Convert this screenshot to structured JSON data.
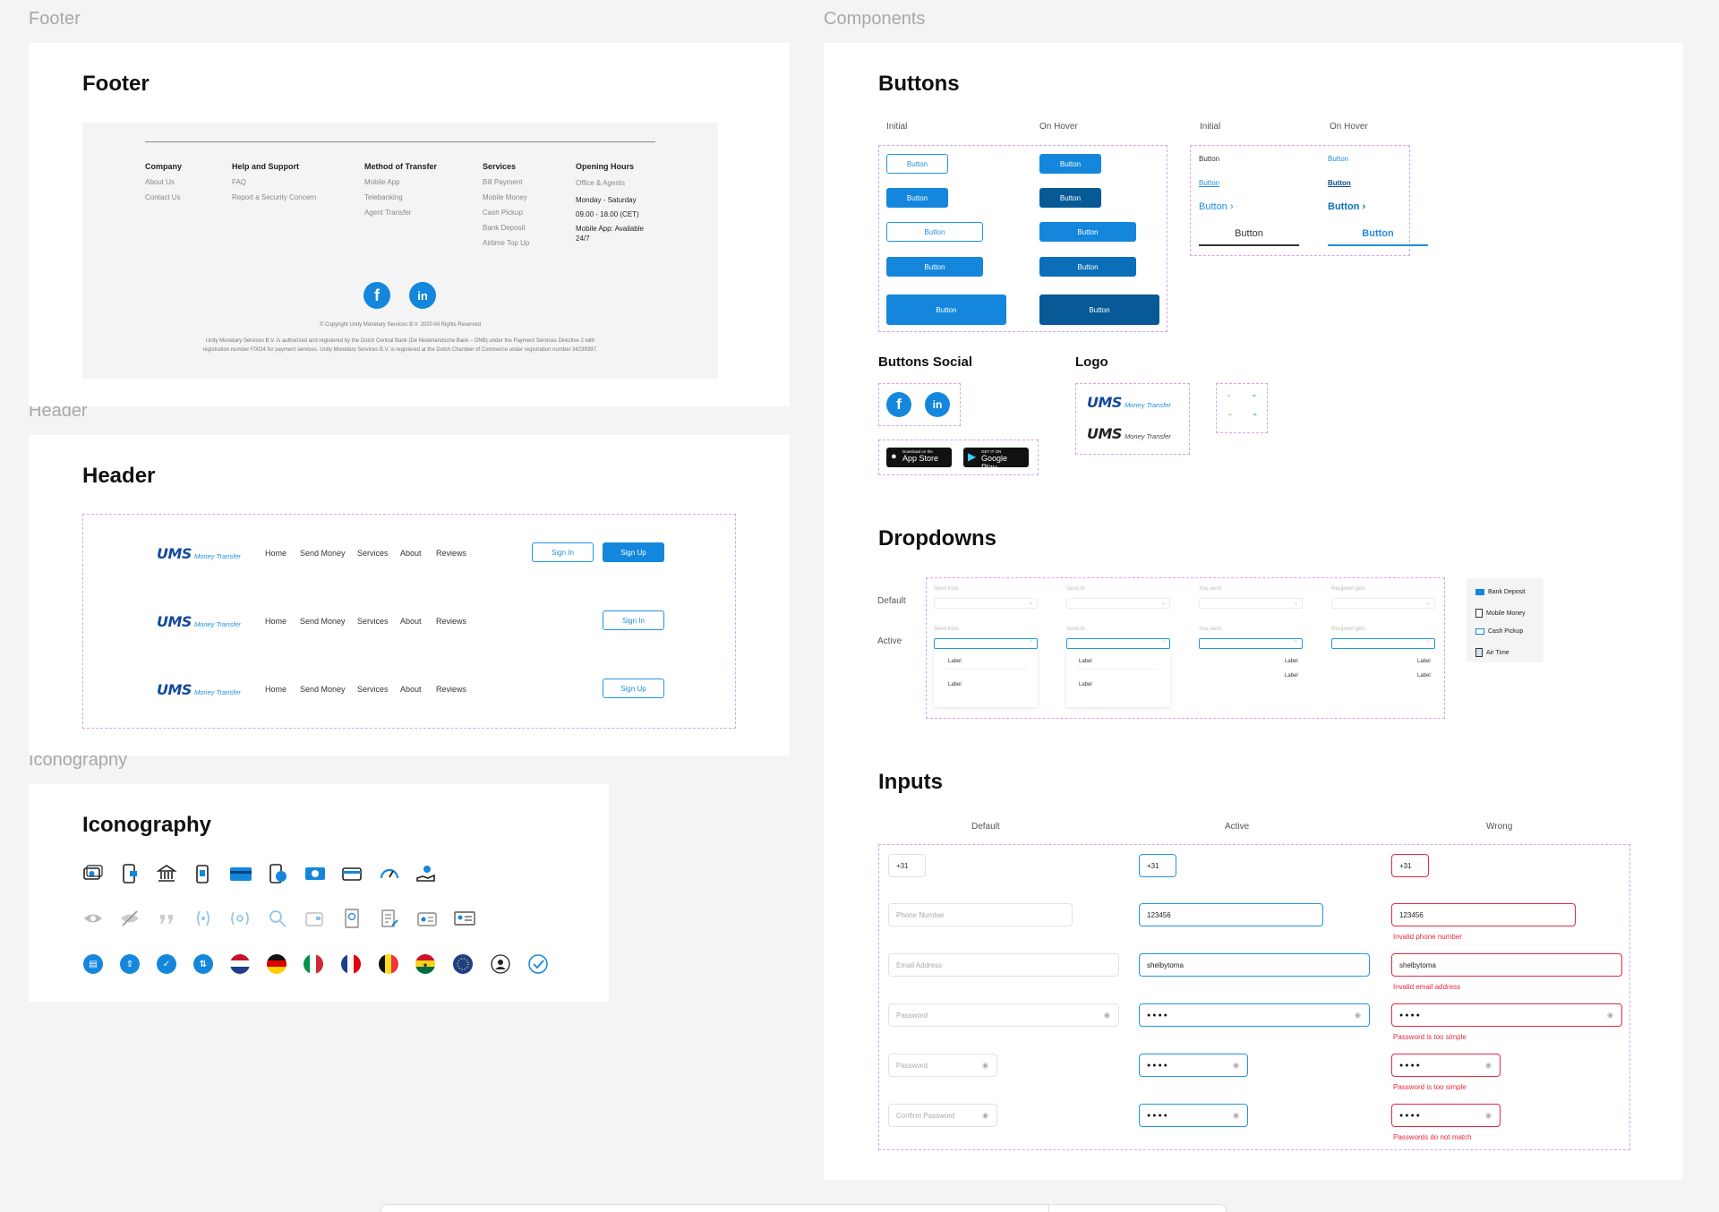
{
  "frames": {
    "footer": "Footer",
    "header": "Header",
    "iconography": "Iconography",
    "components": "Components"
  },
  "titles": {
    "footer": "Footer",
    "header": "Header",
    "iconography": "Iconography",
    "buttons": "Buttons",
    "buttons_social": "Buttons Social",
    "logo": "Logo",
    "dropdowns": "Dropdowns",
    "inputs": "Inputs"
  },
  "footer": {
    "columns": [
      {
        "title": "Company",
        "items": [
          "About Us",
          "Contact Us"
        ]
      },
      {
        "title": "Help and Support",
        "items": [
          "FAQ",
          "Report a Security Concern"
        ]
      },
      {
        "title": "Method of Transfer",
        "items": [
          "Mobile App",
          "Telebanking",
          "Agent Transfer"
        ]
      },
      {
        "title": "Services",
        "items": [
          "Bill Payment",
          "Mobile Money",
          "Cash Pickup",
          "Bank Deposit",
          "Airtime Top Up"
        ]
      }
    ],
    "hours": {
      "title": "Opening Hours",
      "office": "Office & Agents",
      "days": "Monday - Saturday",
      "time": "09.00 - 18.00 (CET)",
      "app_line1": "Mobile App: Available",
      "app_line2": "24/7"
    },
    "copyright": "© Copyright Unity Monetary Services B.V. 2020 All Rights Reserved",
    "legal1": "Unity Monetary Services B.V. is authorized and registered by the Dutch Central Bank (De Nederlandsche Bank – DNB) under the Payment Services Directive 2 with",
    "legal2": "registration number F0024 for payment services. Unity Monetary Services B.V. is registered at the Dutch Chamber of Commerce under registration number 34239397."
  },
  "logo": {
    "mark": "UMS",
    "tag": "Money Transfer"
  },
  "header": {
    "nav": [
      "Home",
      "Send Money",
      "Services",
      "About",
      "Reviews"
    ],
    "sign_in": "Sign In",
    "sign_up": "Sign Up"
  },
  "buttons": {
    "initial": "Initial",
    "on_hover": "On Hover",
    "label": "Button",
    "arrow": "›"
  },
  "stores": {
    "app_small": "Download on the",
    "app_big": "App Store",
    "play_small": "GET IT ON",
    "play_big": "Google Play"
  },
  "dropdowns": {
    "default": "Default",
    "active": "Active",
    "fields": [
      "Send from",
      "Send to",
      "You send",
      "Recipient gets"
    ],
    "option": "Label",
    "menu": [
      "Bank Deposit",
      "Mobile Money",
      "Cash Pickup",
      "Air Time"
    ]
  },
  "inputs": {
    "states": [
      "Default",
      "Active",
      "Wrong"
    ],
    "code": "+31",
    "phone_ph": "Phone Number",
    "phone_val": "123456",
    "email_ph": "Email Address",
    "email_val": "shelbytoma",
    "password_ph": "Password",
    "password_val": "●●●●",
    "confirm_ph": "Confirm Password",
    "err_phone": "Invalid phone number",
    "err_email": "Invalid email address",
    "err_pass": "Password is too simple",
    "err_match": "Passwords do not match"
  },
  "colors": {
    "primary": "#1487dd",
    "dark": "#0a6fb8",
    "error": "#e8283f",
    "dashed": "#d6a4ec",
    "logo": "#13489a"
  }
}
